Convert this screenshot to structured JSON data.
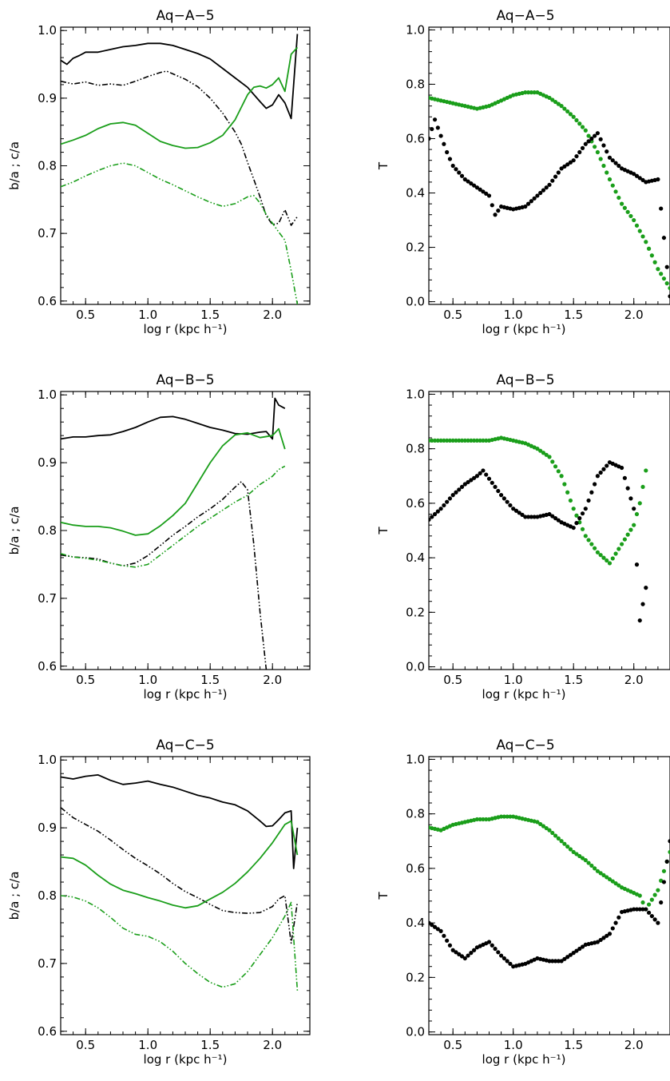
{
  "colors": {
    "black": "#000000",
    "green": "#1a9e1a"
  },
  "chart_data": [
    {
      "type": "line",
      "title": "Aq−A−5",
      "xlabel": "log r (kpc h⁻¹)",
      "ylabel": "b/a ; c/a",
      "xlim": [
        0.3,
        2.3
      ],
      "ylim": [
        0.595,
        1.005
      ],
      "xticks": [
        "0.5",
        "1.0",
        "1.5",
        "2.0"
      ],
      "yticks": [
        "0.6",
        "0.7",
        "0.8",
        "0.9",
        "1.0"
      ],
      "series": [
        {
          "color": "black",
          "style": "solid",
          "x": [
            0.3,
            0.35,
            0.4,
            0.45,
            0.5,
            0.6,
            0.7,
            0.8,
            0.9,
            1.0,
            1.1,
            1.2,
            1.3,
            1.4,
            1.5,
            1.6,
            1.7,
            1.8,
            1.9,
            1.95,
            2.0,
            2.05,
            2.1,
            2.15,
            2.2
          ],
          "y": [
            0.956,
            0.95,
            0.959,
            0.963,
            0.968,
            0.968,
            0.972,
            0.976,
            0.978,
            0.981,
            0.981,
            0.978,
            0.972,
            0.966,
            0.958,
            0.944,
            0.93,
            0.916,
            0.895,
            0.885,
            0.89,
            0.905,
            0.893,
            0.87,
            0.995
          ]
        },
        {
          "color": "black",
          "style": "dashdotdot",
          "x": [
            0.3,
            0.4,
            0.5,
            0.6,
            0.7,
            0.8,
            0.9,
            1.0,
            1.1,
            1.15,
            1.2,
            1.3,
            1.4,
            1.5,
            1.6,
            1.7,
            1.75,
            1.8,
            1.85,
            1.9,
            1.95,
            2.0,
            2.05,
            2.1,
            2.15,
            2.2
          ],
          "y": [
            0.925,
            0.921,
            0.924,
            0.919,
            0.921,
            0.919,
            0.925,
            0.932,
            0.938,
            0.94,
            0.936,
            0.928,
            0.917,
            0.9,
            0.878,
            0.85,
            0.832,
            0.805,
            0.78,
            0.754,
            0.726,
            0.713,
            0.715,
            0.735,
            0.712,
            0.725
          ]
        },
        {
          "color": "green",
          "style": "solid",
          "x": [
            0.3,
            0.4,
            0.5,
            0.6,
            0.7,
            0.8,
            0.9,
            1.0,
            1.1,
            1.2,
            1.3,
            1.4,
            1.5,
            1.6,
            1.7,
            1.8,
            1.85,
            1.9,
            1.95,
            2.0,
            2.05,
            2.1,
            2.15,
            2.2
          ],
          "y": [
            0.832,
            0.838,
            0.845,
            0.855,
            0.862,
            0.864,
            0.86,
            0.848,
            0.836,
            0.83,
            0.826,
            0.827,
            0.834,
            0.845,
            0.868,
            0.905,
            0.916,
            0.918,
            0.915,
            0.92,
            0.93,
            0.91,
            0.965,
            0.975
          ]
        },
        {
          "color": "green",
          "style": "dashdotdot",
          "x": [
            0.3,
            0.4,
            0.5,
            0.6,
            0.7,
            0.8,
            0.9,
            1.0,
            1.1,
            1.2,
            1.3,
            1.4,
            1.5,
            1.6,
            1.7,
            1.8,
            1.85,
            1.9,
            1.95,
            2.0,
            2.05,
            2.1,
            2.15,
            2.2
          ],
          "y": [
            0.769,
            0.776,
            0.785,
            0.793,
            0.8,
            0.804,
            0.8,
            0.79,
            0.78,
            0.772,
            0.763,
            0.754,
            0.746,
            0.74,
            0.744,
            0.754,
            0.756,
            0.745,
            0.728,
            0.715,
            0.702,
            0.69,
            0.645,
            0.595
          ]
        }
      ]
    },
    {
      "type": "scatter",
      "title": "Aq−A−5",
      "xlabel": "log r (kpc h⁻¹)",
      "ylabel": "T",
      "xlim": [
        0.3,
        2.3
      ],
      "ylim": [
        -0.01,
        1.01
      ],
      "xticks": [
        "0.5",
        "1.0",
        "1.5",
        "2.0"
      ],
      "yticks": [
        "0.0",
        "0.2",
        "0.4",
        "0.6",
        "0.8",
        "1.0"
      ],
      "series": [
        {
          "color": "green",
          "x": [
            0.3,
            0.4,
            0.5,
            0.6,
            0.7,
            0.8,
            0.9,
            1.0,
            1.1,
            1.2,
            1.3,
            1.4,
            1.5,
            1.6,
            1.7,
            1.8,
            1.9,
            2.0,
            2.1,
            2.2,
            2.3
          ],
          "y": [
            0.75,
            0.74,
            0.73,
            0.72,
            0.71,
            0.72,
            0.74,
            0.76,
            0.77,
            0.77,
            0.75,
            0.72,
            0.68,
            0.63,
            0.55,
            0.45,
            0.36,
            0.3,
            0.22,
            0.12,
            0.05
          ]
        },
        {
          "color": "black",
          "x": [
            0.3,
            0.35,
            0.4,
            0.45,
            0.5,
            0.6,
            0.7,
            0.8,
            0.85,
            0.9,
            1.0,
            1.1,
            1.2,
            1.3,
            1.4,
            1.5,
            1.6,
            1.7,
            1.8,
            1.9,
            2.0,
            2.1,
            2.2,
            2.3
          ],
          "y": [
            0.6,
            0.67,
            0.61,
            0.55,
            0.5,
            0.45,
            0.42,
            0.39,
            0.32,
            0.35,
            0.34,
            0.35,
            0.39,
            0.43,
            0.49,
            0.52,
            0.58,
            0.62,
            0.53,
            0.49,
            0.47,
            0.44,
            0.45,
            0.02
          ]
        }
      ]
    },
    {
      "type": "line",
      "title": "Aq−B−5",
      "xlabel": "log r (kpc h⁻¹)",
      "ylabel": "b/a ; c/a",
      "xlim": [
        0.3,
        2.3
      ],
      "ylim": [
        0.595,
        1.005
      ],
      "xticks": [
        "0.5",
        "1.0",
        "1.5",
        "2.0"
      ],
      "yticks": [
        "0.6",
        "0.7",
        "0.8",
        "0.9",
        "1.0"
      ],
      "series": [
        {
          "color": "black",
          "style": "solid",
          "x": [
            0.3,
            0.4,
            0.5,
            0.6,
            0.7,
            0.8,
            0.9,
            1.0,
            1.1,
            1.2,
            1.3,
            1.4,
            1.5,
            1.6,
            1.7,
            1.8,
            1.9,
            1.95,
            2.0,
            2.02,
            2.05,
            2.1
          ],
          "y": [
            0.935,
            0.938,
            0.938,
            0.94,
            0.941,
            0.946,
            0.952,
            0.96,
            0.967,
            0.968,
            0.964,
            0.958,
            0.952,
            0.948,
            0.943,
            0.942,
            0.945,
            0.946,
            0.935,
            0.995,
            0.985,
            0.98
          ]
        },
        {
          "color": "black",
          "style": "dashdotdot",
          "x": [
            0.3,
            0.4,
            0.5,
            0.6,
            0.7,
            0.8,
            0.9,
            1.0,
            1.1,
            1.2,
            1.3,
            1.4,
            1.5,
            1.6,
            1.7,
            1.75,
            1.8,
            1.85,
            1.9,
            1.95
          ],
          "y": [
            0.764,
            0.761,
            0.76,
            0.758,
            0.752,
            0.748,
            0.752,
            0.763,
            0.778,
            0.793,
            0.806,
            0.82,
            0.832,
            0.846,
            0.864,
            0.872,
            0.86,
            0.78,
            0.68,
            0.595
          ]
        },
        {
          "color": "green",
          "style": "solid",
          "x": [
            0.3,
            0.4,
            0.5,
            0.6,
            0.7,
            0.8,
            0.9,
            1.0,
            1.1,
            1.2,
            1.3,
            1.4,
            1.5,
            1.6,
            1.7,
            1.8,
            1.9,
            2.0,
            2.05,
            2.1
          ],
          "y": [
            0.812,
            0.808,
            0.806,
            0.806,
            0.804,
            0.799,
            0.793,
            0.795,
            0.807,
            0.822,
            0.84,
            0.87,
            0.9,
            0.925,
            0.941,
            0.944,
            0.937,
            0.94,
            0.95,
            0.92
          ]
        },
        {
          "color": "green",
          "style": "dashdotdot",
          "x": [
            0.3,
            0.4,
            0.5,
            0.6,
            0.7,
            0.8,
            0.9,
            1.0,
            1.1,
            1.2,
            1.3,
            1.4,
            1.5,
            1.6,
            1.7,
            1.8,
            1.9,
            2.0,
            2.05,
            2.1
          ],
          "y": [
            0.766,
            0.761,
            0.759,
            0.756,
            0.752,
            0.748,
            0.746,
            0.75,
            0.764,
            0.778,
            0.792,
            0.806,
            0.818,
            0.83,
            0.842,
            0.852,
            0.868,
            0.88,
            0.89,
            0.895
          ]
        }
      ]
    },
    {
      "type": "scatter",
      "title": "Aq−B−5",
      "xlabel": "log r (kpc h⁻¹)",
      "ylabel": "T",
      "xlim": [
        0.3,
        2.3
      ],
      "ylim": [
        -0.01,
        1.01
      ],
      "xticks": [
        "0.5",
        "1.0",
        "1.5",
        "2.0"
      ],
      "yticks": [
        "0.0",
        "0.2",
        "0.4",
        "0.6",
        "0.8",
        "1.0"
      ],
      "series": [
        {
          "color": "green",
          "x": [
            0.3,
            0.4,
            0.5,
            0.6,
            0.7,
            0.8,
            0.9,
            1.0,
            1.1,
            1.2,
            1.3,
            1.4,
            1.5,
            1.6,
            1.7,
            1.8,
            1.9,
            2.0,
            2.05,
            2.1
          ],
          "y": [
            0.83,
            0.83,
            0.83,
            0.83,
            0.83,
            0.83,
            0.84,
            0.83,
            0.82,
            0.8,
            0.77,
            0.7,
            0.58,
            0.48,
            0.42,
            0.38,
            0.45,
            0.52,
            0.6,
            0.72
          ]
        },
        {
          "color": "black",
          "x": [
            0.3,
            0.4,
            0.5,
            0.6,
            0.7,
            0.75,
            0.8,
            0.9,
            1.0,
            1.1,
            1.2,
            1.3,
            1.4,
            1.5,
            1.6,
            1.7,
            1.8,
            1.9,
            2.0,
            2.05,
            2.1
          ],
          "y": [
            0.54,
            0.58,
            0.63,
            0.67,
            0.7,
            0.72,
            0.69,
            0.63,
            0.58,
            0.55,
            0.55,
            0.56,
            0.53,
            0.51,
            0.58,
            0.7,
            0.75,
            0.73,
            0.58,
            0.17,
            0.29
          ]
        }
      ]
    },
    {
      "type": "line",
      "title": "Aq−C−5",
      "xlabel": "log r (kpc h⁻¹)",
      "ylabel": "b/a ; c/a",
      "xlim": [
        0.3,
        2.3
      ],
      "ylim": [
        0.595,
        1.005
      ],
      "xticks": [
        "0.5",
        "1.0",
        "1.5",
        "2.0"
      ],
      "yticks": [
        "0.6",
        "0.7",
        "0.8",
        "0.9",
        "1.0"
      ],
      "series": [
        {
          "color": "black",
          "style": "solid",
          "x": [
            0.3,
            0.4,
            0.5,
            0.6,
            0.7,
            0.8,
            0.9,
            1.0,
            1.1,
            1.2,
            1.3,
            1.4,
            1.5,
            1.6,
            1.7,
            1.8,
            1.9,
            1.95,
            2.0,
            2.05,
            2.1,
            2.15,
            2.17,
            2.2
          ],
          "y": [
            0.975,
            0.972,
            0.976,
            0.978,
            0.97,
            0.964,
            0.966,
            0.969,
            0.964,
            0.96,
            0.954,
            0.948,
            0.944,
            0.938,
            0.934,
            0.925,
            0.91,
            0.902,
            0.903,
            0.912,
            0.922,
            0.925,
            0.84,
            0.9
          ]
        },
        {
          "color": "black",
          "style": "dashdotdot",
          "x": [
            0.3,
            0.4,
            0.5,
            0.6,
            0.7,
            0.8,
            0.9,
            1.0,
            1.1,
            1.2,
            1.3,
            1.4,
            1.5,
            1.6,
            1.7,
            1.8,
            1.9,
            2.0,
            2.05,
            2.1,
            2.15,
            2.2
          ],
          "y": [
            0.93,
            0.915,
            0.905,
            0.895,
            0.882,
            0.868,
            0.855,
            0.844,
            0.832,
            0.818,
            0.806,
            0.797,
            0.787,
            0.778,
            0.775,
            0.774,
            0.775,
            0.784,
            0.795,
            0.8,
            0.73,
            0.79
          ]
        },
        {
          "color": "green",
          "style": "solid",
          "x": [
            0.3,
            0.4,
            0.5,
            0.6,
            0.7,
            0.8,
            0.9,
            1.0,
            1.1,
            1.2,
            1.3,
            1.4,
            1.5,
            1.6,
            1.7,
            1.8,
            1.9,
            2.0,
            2.1,
            2.15,
            2.2
          ],
          "y": [
            0.857,
            0.855,
            0.845,
            0.83,
            0.817,
            0.808,
            0.803,
            0.797,
            0.792,
            0.786,
            0.782,
            0.785,
            0.795,
            0.805,
            0.818,
            0.835,
            0.855,
            0.878,
            0.905,
            0.91,
            0.86
          ]
        },
        {
          "color": "green",
          "style": "dashdotdot",
          "x": [
            0.3,
            0.4,
            0.5,
            0.6,
            0.7,
            0.8,
            0.9,
            1.0,
            1.1,
            1.2,
            1.3,
            1.4,
            1.5,
            1.6,
            1.7,
            1.8,
            1.9,
            2.0,
            2.1,
            2.15,
            2.2
          ],
          "y": [
            0.8,
            0.798,
            0.792,
            0.782,
            0.768,
            0.752,
            0.743,
            0.74,
            0.732,
            0.718,
            0.7,
            0.685,
            0.672,
            0.665,
            0.67,
            0.688,
            0.713,
            0.738,
            0.77,
            0.79,
            0.66
          ]
        }
      ]
    },
    {
      "type": "scatter",
      "title": "Aq−C−5",
      "xlabel": "log r (kpc h⁻¹)",
      "ylabel": "T",
      "xlim": [
        0.3,
        2.3
      ],
      "ylim": [
        -0.01,
        1.01
      ],
      "xticks": [
        "0.5",
        "1.0",
        "1.5",
        "2.0"
      ],
      "yticks": [
        "0.0",
        "0.2",
        "0.4",
        "0.6",
        "0.8",
        "1.0"
      ],
      "series": [
        {
          "color": "green",
          "x": [
            0.3,
            0.4,
            0.5,
            0.6,
            0.7,
            0.8,
            0.9,
            1.0,
            1.1,
            1.2,
            1.3,
            1.4,
            1.5,
            1.6,
            1.7,
            1.8,
            1.9,
            2.0,
            2.05,
            2.1,
            2.2,
            2.3
          ],
          "y": [
            0.75,
            0.74,
            0.76,
            0.77,
            0.78,
            0.78,
            0.79,
            0.79,
            0.78,
            0.77,
            0.74,
            0.7,
            0.66,
            0.63,
            0.59,
            0.56,
            0.53,
            0.51,
            0.5,
            0.45,
            0.52,
            0.66
          ]
        },
        {
          "color": "black",
          "x": [
            0.3,
            0.4,
            0.5,
            0.6,
            0.7,
            0.8,
            0.9,
            1.0,
            1.1,
            1.2,
            1.3,
            1.4,
            1.5,
            1.6,
            1.7,
            1.8,
            1.9,
            2.0,
            2.1,
            2.2,
            2.3
          ],
          "y": [
            0.4,
            0.37,
            0.3,
            0.27,
            0.31,
            0.33,
            0.28,
            0.24,
            0.25,
            0.27,
            0.26,
            0.26,
            0.29,
            0.32,
            0.33,
            0.36,
            0.44,
            0.45,
            0.45,
            0.4,
            0.7
          ]
        }
      ]
    }
  ]
}
